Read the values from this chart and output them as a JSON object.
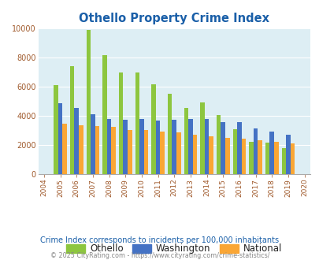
{
  "title": "Othello Property Crime Index",
  "years": [
    2004,
    2005,
    2006,
    2007,
    2008,
    2009,
    2010,
    2011,
    2012,
    2013,
    2014,
    2015,
    2016,
    2017,
    2018,
    2019,
    2020
  ],
  "othello": [
    null,
    6100,
    7400,
    9900,
    8150,
    7000,
    7000,
    6150,
    5550,
    4550,
    4950,
    4050,
    3100,
    2200,
    2150,
    1800,
    null
  ],
  "washington": [
    null,
    4900,
    4550,
    4100,
    3800,
    3750,
    3800,
    3700,
    3750,
    3800,
    3800,
    3550,
    3550,
    3150,
    2950,
    2700,
    null
  ],
  "national": [
    null,
    3450,
    3350,
    3300,
    3250,
    3050,
    3050,
    2950,
    2900,
    2700,
    2600,
    2500,
    2450,
    2350,
    2200,
    2100,
    null
  ],
  "othello_color": "#8dc63f",
  "washington_color": "#4472c4",
  "national_color": "#faa635",
  "bg_color": "#ddeef4",
  "ylim": [
    0,
    10000
  ],
  "yticks": [
    0,
    2000,
    4000,
    6000,
    8000,
    10000
  ],
  "subtitle": "Crime Index corresponds to incidents per 100,000 inhabitants",
  "footer": "© 2025 CityRating.com - https://www.cityrating.com/crime-statistics/",
  "legend_labels": [
    "Othello",
    "Washington",
    "National"
  ],
  "bar_width": 0.27
}
